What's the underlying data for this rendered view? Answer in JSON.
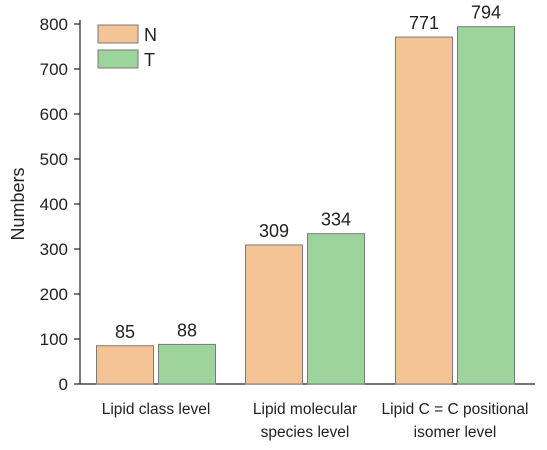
{
  "chart_data": {
    "type": "bar",
    "categories": [
      [
        "Lipid class level"
      ],
      [
        "Lipid molecular",
        "species level"
      ],
      [
        "Lipid C = C positional",
        "isomer level"
      ]
    ],
    "series": [
      {
        "name": "N",
        "values": [
          85,
          309,
          771
        ],
        "color": "#f5c496"
      },
      {
        "name": "T",
        "values": [
          88,
          334,
          794
        ],
        "color": "#9dd49b"
      }
    ],
    "ylabel": "Numbers",
    "ylim": [
      0,
      800
    ],
    "yticks": [
      0,
      100,
      200,
      300,
      400,
      500,
      600,
      700,
      800
    ],
    "grid": false,
    "legend_position": "top-left",
    "data_labels": true,
    "bar_stroke": "#7a7a7a"
  }
}
